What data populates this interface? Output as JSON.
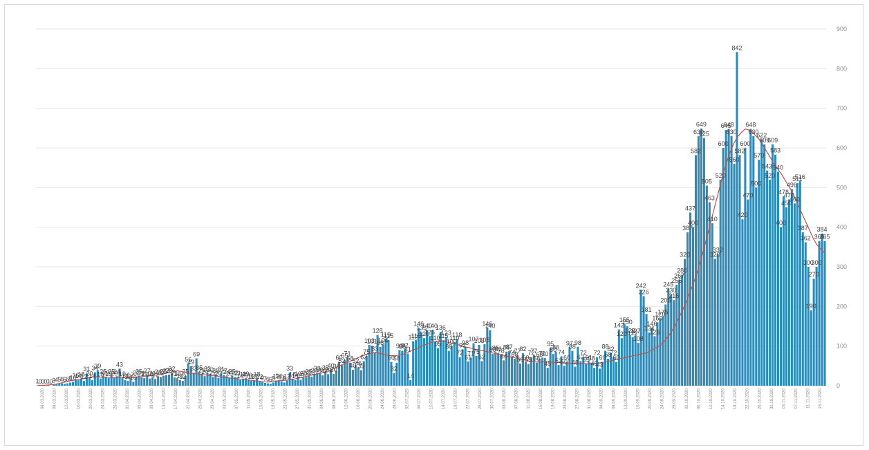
{
  "chart_data": {
    "type": "bar",
    "title": "",
    "xlabel": "",
    "ylabel": "",
    "ylim": [
      0,
      900
    ],
    "yticks": [
      0,
      100,
      200,
      300,
      400,
      500,
      600,
      700,
      800,
      900
    ],
    "grid": true,
    "legend": "none",
    "colors": {
      "bars": "#2e8bb8",
      "trend": "#c0504d"
    },
    "x_tick_labels": [
      "04.03.2020",
      "08.03.2020",
      "12.03.2020",
      "16.03.2020",
      "20.03.2020",
      "24.03.2020",
      "28.03.2020",
      "01.04.2020",
      "05.04.2020",
      "09.04.2020",
      "13.04.2020",
      "17.04.2020",
      "21.04.2020",
      "25.04.2020",
      "29.04.2020",
      "03.05.2020",
      "07.05.2020",
      "11.05.2020",
      "15.05.2020",
      "19.05.2020",
      "23.05.2020",
      "27.05.2020",
      "31.05.2020",
      "04.06.2020",
      "08.06.2020",
      "12.06.2020",
      "16.06.2020",
      "20.06.2020",
      "24.06.2020",
      "28.06.2020",
      "02.07.2020",
      "06.07.2020",
      "10.07.2020",
      "14.07.2020",
      "18.07.2020",
      "22.07.2020",
      "26.07.2020",
      "30.07.2020",
      "03.08.2020",
      "07.08.2020",
      "11.08.2020",
      "15.08.2020",
      "19.08.2020",
      "23.08.2020",
      "27.08.2020",
      "31.08.2020",
      "04.09.2020",
      "08.09.2020",
      "12.09.2020",
      "16.09.2020",
      "20.09.2020",
      "24.09.2020",
      "28.09.2020",
      "02.10.2020",
      "06.10.2020",
      "10.10.2020",
      "14.10.2020",
      "18.10.2020",
      "22.10.2020",
      "26.10.2020",
      "30.10.2020",
      "03.11.2020",
      "07.11.2020",
      "11.11.2020",
      "15.11.2020"
    ],
    "values": [
      1,
      0,
      0,
      0,
      1,
      0,
      3,
      4,
      5,
      6,
      5,
      6,
      8,
      10,
      16,
      14,
      18,
      12,
      31,
      20,
      14,
      34,
      39,
      18,
      25,
      22,
      19,
      25,
      20,
      24,
      43,
      19,
      14,
      12,
      17,
      10,
      22,
      25,
      21,
      19,
      27,
      18,
      21,
      17,
      24,
      22,
      25,
      27,
      28,
      32,
      21,
      19,
      14,
      12,
      25,
      56,
      49,
      33,
      69,
      35,
      29,
      24,
      32,
      30,
      22,
      28,
      20,
      31,
      27,
      24,
      20,
      25,
      22,
      21,
      14,
      18,
      19,
      16,
      12,
      13,
      18,
      12,
      9,
      7,
      6,
      5,
      8,
      13,
      14,
      11,
      8,
      13,
      33,
      18,
      14,
      19,
      15,
      20,
      22,
      25,
      23,
      29,
      33,
      30,
      26,
      35,
      29,
      40,
      30,
      38,
      60,
      52,
      65,
      71,
      58,
      40,
      52,
      46,
      39,
      62,
      75,
      103,
      101,
      83,
      128,
      98,
      104,
      119,
      115,
      60,
      32,
      58,
      90,
      88,
      92,
      81,
      14,
      112,
      115,
      146,
      135,
      120,
      140,
      125,
      140,
      110,
      95,
      136,
      115,
      123,
      88,
      100,
      110,
      118,
      72,
      92,
      98,
      61,
      71,
      107,
      75,
      103,
      62,
      105,
      146,
      140,
      80,
      85,
      82,
      78,
      64,
      86,
      87,
      74,
      68,
      77,
      56,
      82,
      60,
      55,
      72,
      77,
      58,
      68,
      71,
      70,
      45,
      95,
      80,
      86,
      52,
      74,
      50,
      60,
      97,
      88,
      48,
      98,
      62,
      72,
      55,
      61,
      58,
      45,
      72,
      43,
      60,
      88,
      68,
      82,
      72,
      60,
      142,
      120,
      155,
      150,
      128,
      122,
      127,
      108,
      242,
      226,
      181,
      134,
      146,
      125,
      160,
      170,
      175,
      205,
      245,
      230,
      216,
      255,
      267,
      280,
      320,
      387,
      437,
      400,
      582,
      630,
      649,
      625,
      505,
      463,
      410,
      320,
      332,
      520,
      600,
      645,
      648,
      630,
      560,
      842,
      582,
      420,
      600,
      470,
      648,
      630,
      500,
      570,
      622,
      609,
      543,
      520,
      609,
      583,
      540,
      400,
      478,
      450,
      470,
      496,
      460,
      511,
      516,
      387,
      362,
      300,
      190,
      270,
      300,
      365,
      384,
      365
    ],
    "trend": [
      1,
      1,
      1,
      2,
      3,
      4,
      6,
      8,
      10,
      12,
      14,
      15,
      17,
      18,
      20,
      22,
      23,
      22,
      21,
      22,
      21,
      20,
      20,
      21,
      22,
      21,
      20,
      21,
      22,
      23,
      24,
      25,
      26,
      27,
      28,
      30,
      32,
      34,
      36,
      38,
      36,
      34,
      32,
      31,
      30,
      29,
      28,
      27,
      25,
      25,
      24,
      22,
      21,
      20,
      19,
      18,
      17,
      16,
      15,
      14,
      13,
      12,
      11,
      10,
      9,
      10,
      11,
      12,
      13,
      14,
      15,
      16,
      18,
      20,
      22,
      24,
      26,
      28,
      30,
      32,
      35,
      38,
      42,
      46,
      50,
      54,
      58,
      62,
      66,
      70,
      74,
      78,
      80,
      82,
      84,
      82,
      80,
      78,
      76,
      75,
      76,
      78,
      80,
      84,
      88,
      92,
      96,
      100,
      104,
      108,
      110,
      112,
      114,
      112,
      110,
      108,
      106,
      104,
      100,
      98,
      96,
      94,
      92,
      90,
      88,
      86,
      84,
      82,
      80,
      78,
      76,
      74,
      72,
      70,
      68,
      66,
      64,
      62,
      61,
      60,
      60,
      60,
      60,
      59,
      58,
      58,
      58,
      57,
      57,
      56,
      56,
      56,
      56,
      55,
      56,
      56,
      57,
      58,
      60,
      62,
      64,
      66,
      68,
      70,
      72,
      74,
      76,
      78,
      80,
      82,
      85,
      90,
      95,
      100,
      108,
      118,
      130,
      145,
      162,
      180,
      200,
      222,
      245,
      270,
      298,
      330,
      365,
      400,
      435,
      470,
      505,
      540,
      570,
      595,
      615,
      630,
      640,
      648,
      645,
      640,
      630,
      620,
      605,
      590,
      575,
      560,
      547,
      535,
      520,
      505,
      490,
      470,
      450,
      430,
      410,
      390,
      370,
      355,
      345,
      335
    ]
  }
}
